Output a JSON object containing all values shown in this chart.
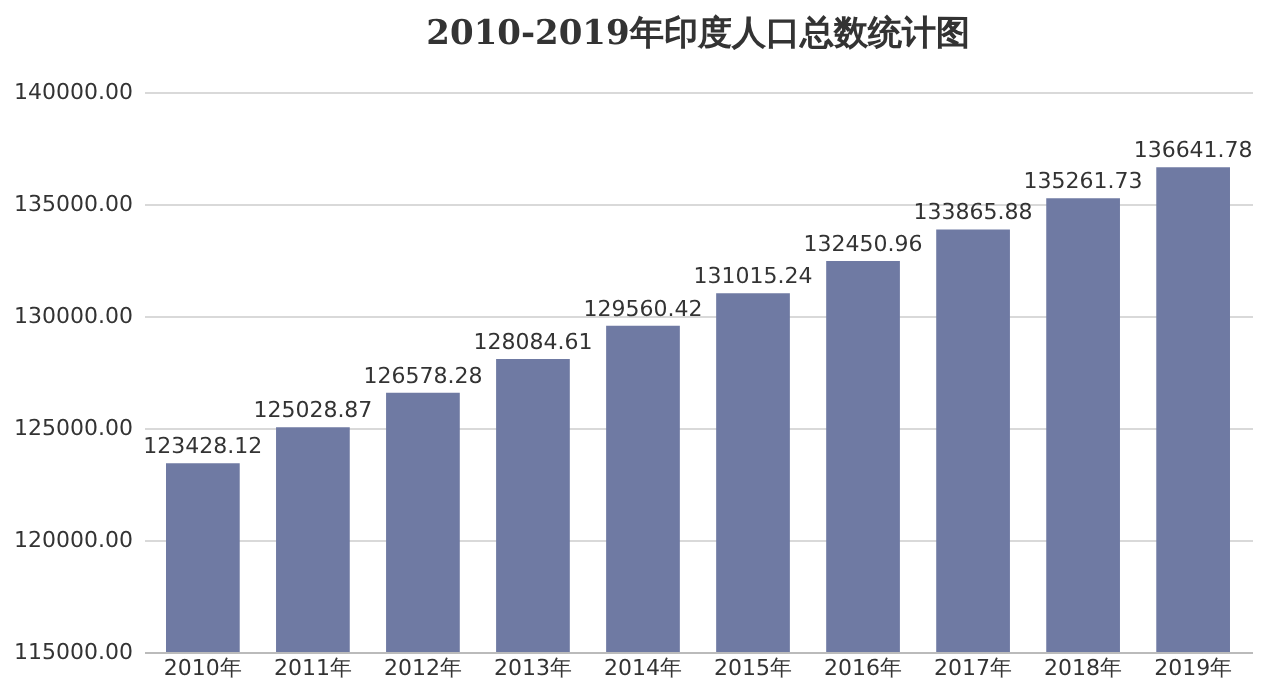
{
  "chart_data": {
    "type": "bar",
    "title": "2010-2019年印度人口总数统计图",
    "categories": [
      "2010年",
      "2011年",
      "2012年",
      "2013年",
      "2014年",
      "2015年",
      "2016年",
      "2017年",
      "2018年",
      "2019年"
    ],
    "values": [
      123428.12,
      125028.87,
      126578.28,
      128084.61,
      129560.42,
      131015.24,
      132450.96,
      133865.88,
      135261.73,
      136641.78
    ],
    "color": "#6f7aa3",
    "ylim": [
      115000,
      140000
    ],
    "yticks": [
      {
        "value": 115000,
        "label": "115000.00"
      },
      {
        "value": 120000,
        "label": "120000.00"
      },
      {
        "value": 125000,
        "label": "125000.00"
      },
      {
        "value": 130000,
        "label": "130000.00"
      },
      {
        "value": 135000,
        "label": "135000.00"
      },
      {
        "value": 140000,
        "label": "140000.00"
      }
    ],
    "grid": "y",
    "data_labels": true
  }
}
